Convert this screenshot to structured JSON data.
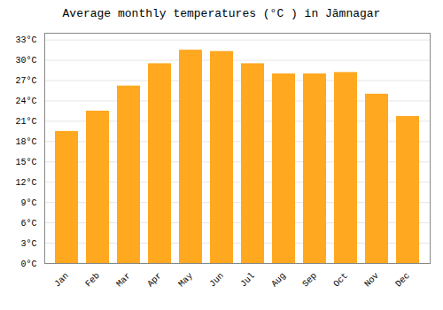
{
  "chart_data": {
    "type": "bar",
    "title": "Average monthly temperatures (°C ) in Jāmnagar",
    "categories": [
      "Jan",
      "Feb",
      "Mar",
      "Apr",
      "May",
      "Jun",
      "Jul",
      "Aug",
      "Sep",
      "Oct",
      "Nov",
      "Dec"
    ],
    "values": [
      19.5,
      22.5,
      26.2,
      29.5,
      31.5,
      31.3,
      29.5,
      28.0,
      28.0,
      28.2,
      25.0,
      21.7
    ],
    "color": "#FFA820",
    "ylim": [
      0,
      34
    ],
    "yticks": [
      {
        "value": 0,
        "label": "0°C"
      },
      {
        "value": 3,
        "label": "3°C"
      },
      {
        "value": 6,
        "label": "6°C"
      },
      {
        "value": 9,
        "label": "9°C"
      },
      {
        "value": 12,
        "label": "12°C"
      },
      {
        "value": 15,
        "label": "15°C"
      },
      {
        "value": 18,
        "label": "18°C"
      },
      {
        "value": 21,
        "label": "21°C"
      },
      {
        "value": 24,
        "label": "24°C"
      },
      {
        "value": 27,
        "label": "27°C"
      },
      {
        "value": 30,
        "label": "30°C"
      },
      {
        "value": 33,
        "label": "33°C"
      }
    ],
    "grid": true
  }
}
